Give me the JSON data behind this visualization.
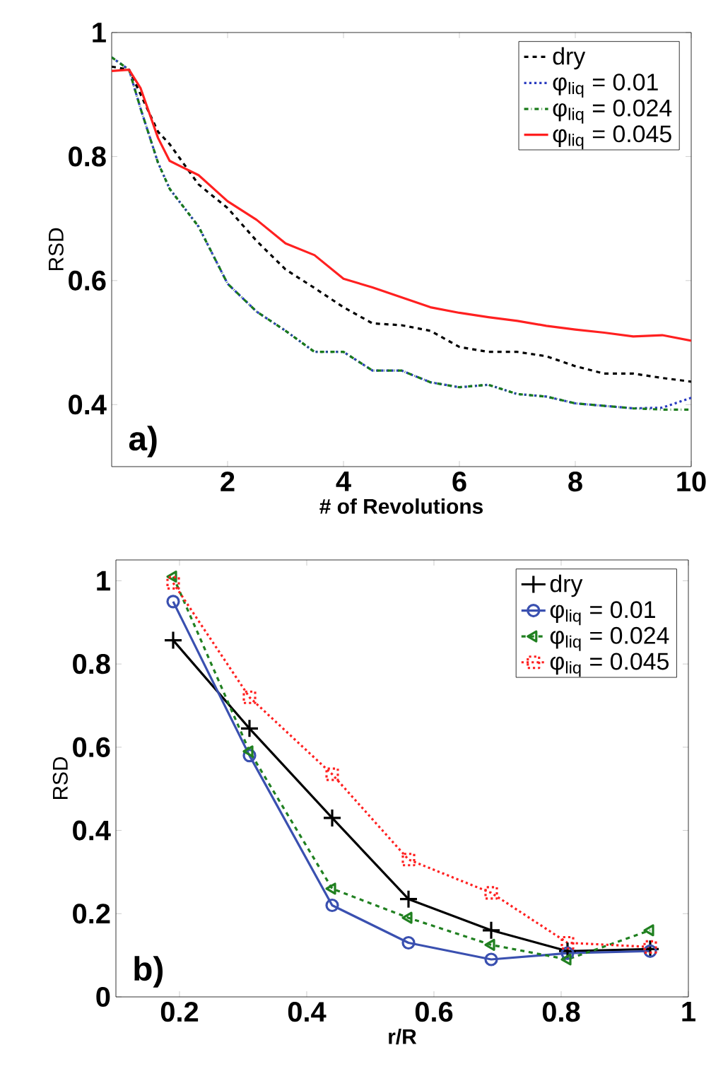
{
  "chart_data": [
    {
      "type": "line",
      "xlabel": "# of Revolutions",
      "ylabel": "RSD",
      "annotations": [
        "a)"
      ],
      "xlim": [
        0,
        10
      ],
      "ylim": [
        0.3,
        1
      ],
      "xticks": [
        2,
        4,
        6,
        8,
        10
      ],
      "yticks": [
        0.4,
        0.6,
        0.8,
        1
      ],
      "legend": "top right",
      "grid": false,
      "x": [
        0,
        0.3,
        0.5,
        0.8,
        1,
        1.5,
        2,
        2.5,
        3,
        3.5,
        4,
        4.5,
        5,
        5.5,
        6,
        6.5,
        7,
        7.5,
        8,
        8.5,
        9,
        9.5,
        10
      ],
      "series": [
        {
          "name": "dry",
          "color": "#000000",
          "line_style": "dashed",
          "marker": "none",
          "values": [
            0.945,
            0.94,
            0.9,
            0.84,
            0.82,
            0.755,
            0.717,
            0.664,
            0.618,
            0.588,
            0.557,
            0.531,
            0.528,
            0.519,
            0.493,
            0.485,
            0.485,
            0.478,
            0.462,
            0.45,
            0.45,
            0.443,
            0.437
          ]
        },
        {
          "name": "φ$_{liq}$ = 0.01",
          "color": "#2a3cc0",
          "line_style": "dotted",
          "marker": "none",
          "values": [
            0.96,
            0.94,
            0.877,
            0.79,
            0.748,
            0.687,
            0.595,
            0.55,
            0.519,
            0.485,
            0.485,
            0.455,
            0.455,
            0.436,
            0.428,
            0.432,
            0.417,
            0.413,
            0.402,
            0.398,
            0.394,
            0.395,
            0.411
          ]
        },
        {
          "name": "φ$_{liq}$ = 0.024",
          "color": "#1a7a1a",
          "line_style": "dashdot",
          "marker": "none",
          "values": [
            0.96,
            0.94,
            0.877,
            0.79,
            0.748,
            0.687,
            0.595,
            0.55,
            0.519,
            0.485,
            0.485,
            0.455,
            0.455,
            0.436,
            0.428,
            0.432,
            0.417,
            0.413,
            0.402,
            0.398,
            0.394,
            0.392,
            0.392
          ]
        },
        {
          "name": "φ$_{liq}$ = 0.045",
          "color": "#ff2020",
          "line_style": "solid",
          "marker": "none",
          "values": [
            0.938,
            0.94,
            0.91,
            0.83,
            0.793,
            0.77,
            0.728,
            0.698,
            0.66,
            0.641,
            0.603,
            0.589,
            0.573,
            0.557,
            0.548,
            0.541,
            0.535,
            0.527,
            0.521,
            0.516,
            0.51,
            0.512,
            0.503
          ]
        }
      ]
    },
    {
      "type": "line",
      "xlabel": "r/R",
      "ylabel": "RSD",
      "annotations": [
        "b)"
      ],
      "xlim": [
        0.1,
        1
      ],
      "ylim": [
        0,
        1.05
      ],
      "xticks": [
        0.2,
        0.4,
        0.6,
        0.8,
        1
      ],
      "yticks": [
        0,
        0.2,
        0.4,
        0.6,
        0.8,
        1
      ],
      "legend": "top right",
      "grid": false,
      "x": [
        0.19,
        0.31,
        0.44,
        0.56,
        0.69,
        0.81,
        0.94
      ],
      "series": [
        {
          "name": "dry",
          "color": "#000000",
          "line_style": "solid",
          "marker": "cross",
          "values": [
            0.857,
            0.645,
            0.43,
            0.235,
            0.16,
            0.11,
            0.115
          ]
        },
        {
          "name": "φ$_{liq}$ = 0.01",
          "color": "#3a50b0",
          "line_style": "solid",
          "marker": "circle",
          "values": [
            0.95,
            0.58,
            0.22,
            0.13,
            0.09,
            0.105,
            0.11
          ]
        },
        {
          "name": "φ$_{liq}$ = 0.024",
          "color": "#208020",
          "line_style": "dashed",
          "marker": "triangle",
          "values": [
            1.01,
            0.59,
            0.26,
            0.19,
            0.125,
            0.09,
            0.16
          ]
        },
        {
          "name": "φ$_{liq}$ = 0.045",
          "color": "#ff2020",
          "line_style": "dotted",
          "marker": "square",
          "values": [
            0.995,
            0.72,
            0.535,
            0.33,
            0.25,
            0.13,
            0.12
          ]
        }
      ]
    }
  ]
}
